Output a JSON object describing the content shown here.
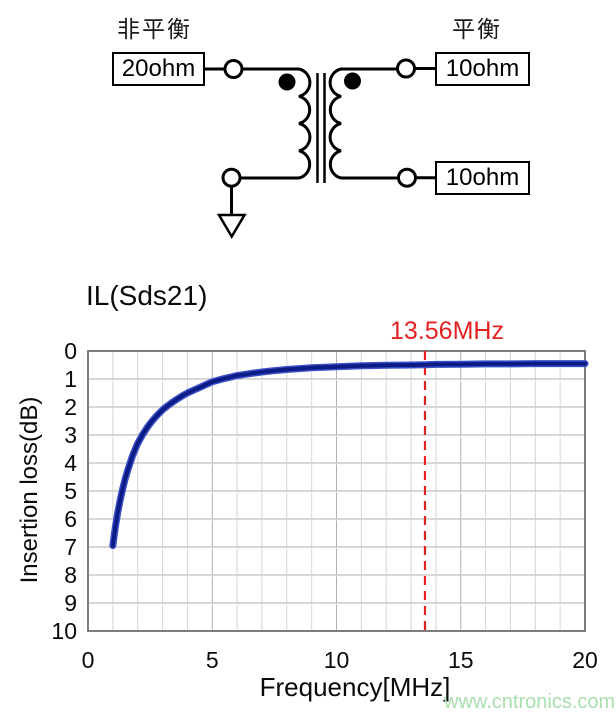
{
  "circuit": {
    "left_port_label": "非平衡",
    "right_port_label": "平衡",
    "source_impedance": "20ohm",
    "load_impedance_top": "10ohm",
    "load_impedance_bottom": "10ohm"
  },
  "chart": {
    "title": "IL(Sds21)",
    "marker_label": "13.56MHz",
    "xlabel": "Frequency[MHz]",
    "ylabel": "Insertion loss(dB)"
  },
  "chart_data": {
    "type": "line",
    "title": "IL(Sds21)",
    "xlabel": "Frequency[MHz]",
    "ylabel": "Insertion loss(dB)",
    "xlim": [
      0,
      20
    ],
    "ylim": [
      0,
      10
    ],
    "y_inverted": true,
    "grid": true,
    "xticks": [
      0,
      5,
      10,
      15,
      20
    ],
    "yticks": [
      0,
      1,
      2,
      3,
      4,
      5,
      6,
      7,
      8,
      9,
      10
    ],
    "colors": {
      "curve": "#0d1c85",
      "curve_edge": "#3a4fc8",
      "marker": "#e52222",
      "grid_major": "#b0b0b0",
      "grid_minor": "#d6d6d6",
      "frame": "#7d7d7d"
    },
    "annotation": {
      "label": "13.56MHz",
      "x": 13.56
    },
    "series": [
      {
        "name": "IL(Sds21)",
        "points": [
          [
            1,
            6.95
          ],
          [
            1.1,
            6.3
          ],
          [
            1.2,
            5.75
          ],
          [
            1.3,
            5.3
          ],
          [
            1.4,
            4.9
          ],
          [
            1.5,
            4.55
          ],
          [
            1.6,
            4.25
          ],
          [
            1.8,
            3.72
          ],
          [
            2,
            3.3
          ],
          [
            2.2,
            2.98
          ],
          [
            2.4,
            2.71
          ],
          [
            2.6,
            2.48
          ],
          [
            2.8,
            2.28
          ],
          [
            3,
            2.1
          ],
          [
            3.2,
            1.96
          ],
          [
            3.4,
            1.83
          ],
          [
            3.6,
            1.71
          ],
          [
            3.8,
            1.6
          ],
          [
            4,
            1.5
          ],
          [
            4.25,
            1.4
          ],
          [
            4.5,
            1.3
          ],
          [
            4.75,
            1.2
          ],
          [
            5,
            1.1
          ],
          [
            5.5,
            0.98
          ],
          [
            6,
            0.88
          ],
          [
            6.5,
            0.81
          ],
          [
            7,
            0.75
          ],
          [
            7.5,
            0.7
          ],
          [
            8,
            0.66
          ],
          [
            8.5,
            0.63
          ],
          [
            9,
            0.6
          ],
          [
            9.5,
            0.58
          ],
          [
            10,
            0.56
          ],
          [
            11,
            0.53
          ],
          [
            12,
            0.51
          ],
          [
            13,
            0.5
          ],
          [
            13.56,
            0.49
          ],
          [
            14,
            0.48
          ],
          [
            15,
            0.47
          ],
          [
            16,
            0.46
          ],
          [
            17,
            0.46
          ],
          [
            18,
            0.45
          ],
          [
            19,
            0.45
          ],
          [
            20,
            0.45
          ]
        ]
      }
    ]
  },
  "watermark": {
    "text": "www.cntronics.com"
  }
}
